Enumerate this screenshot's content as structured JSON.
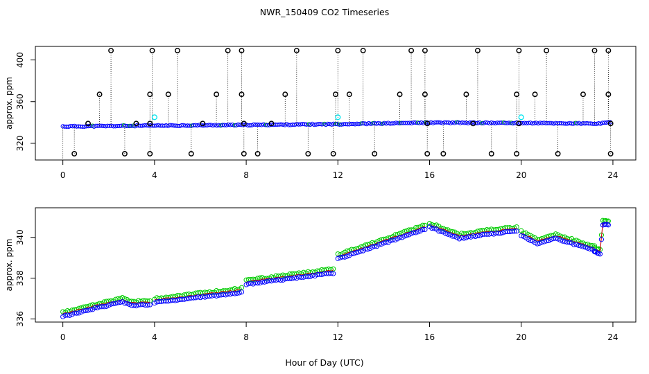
{
  "title": "NWR_150409  CO2 Timeseries",
  "xlabel": "Hour of Day (UTC)",
  "chart_data": [
    {
      "type": "scatter",
      "panel": "top",
      "ylabel": "approx. ppm",
      "xlim": [
        -1.2,
        25
      ],
      "ylim": [
        304,
        413
      ],
      "xticks": [
        0,
        4,
        8,
        12,
        16,
        20,
        24
      ],
      "yticks": [
        320,
        360,
        400
      ],
      "colors": {
        "raw": "#000000",
        "smoothed": "#0000ff",
        "green": "#00cc00",
        "cyan": "#00e5ee"
      },
      "baseline": [
        [
          0,
          336.2
        ],
        [
          4,
          336.9
        ],
        [
          8,
          337.6
        ],
        [
          12,
          338.4
        ],
        [
          16,
          339.8
        ],
        [
          20,
          339.5
        ],
        [
          23.4,
          338.8
        ],
        [
          23.9,
          340.2
        ]
      ],
      "outliers_high": [
        [
          2.1,
          409
        ],
        [
          3.9,
          409
        ],
        [
          5.0,
          409
        ],
        [
          7.2,
          409
        ],
        [
          7.8,
          409
        ],
        [
          10.2,
          409
        ],
        [
          12.0,
          409
        ],
        [
          13.1,
          409
        ],
        [
          15.2,
          409
        ],
        [
          15.8,
          409
        ],
        [
          18.1,
          409
        ],
        [
          19.9,
          409
        ],
        [
          21.1,
          409
        ],
        [
          23.2,
          409
        ],
        [
          23.8,
          409
        ],
        [
          1.6,
          367
        ],
        [
          3.8,
          367
        ],
        [
          4.6,
          367
        ],
        [
          6.7,
          367
        ],
        [
          7.8,
          367
        ],
        [
          9.7,
          367
        ],
        [
          11.9,
          367
        ],
        [
          12.5,
          367
        ],
        [
          14.7,
          367
        ],
        [
          15.8,
          367
        ],
        [
          17.6,
          367
        ],
        [
          19.8,
          367
        ],
        [
          20.6,
          367
        ],
        [
          22.7,
          367
        ],
        [
          23.8,
          367
        ]
      ],
      "outliers_low": [
        [
          0.5,
          310
        ],
        [
          2.7,
          310
        ],
        [
          3.8,
          310
        ],
        [
          5.6,
          310
        ],
        [
          7.9,
          310
        ],
        [
          8.5,
          310
        ],
        [
          10.7,
          310
        ],
        [
          11.8,
          310
        ],
        [
          13.6,
          310
        ],
        [
          15.9,
          310
        ],
        [
          16.6,
          310
        ],
        [
          18.7,
          310
        ],
        [
          19.8,
          310
        ],
        [
          21.6,
          310
        ],
        [
          23.9,
          310
        ]
      ],
      "mid_marks": [
        [
          1.1,
          339
        ],
        [
          3.2,
          339
        ],
        [
          3.8,
          339
        ],
        [
          6.1,
          339
        ],
        [
          7.9,
          339
        ],
        [
          9.1,
          339
        ],
        [
          15.9,
          339
        ],
        [
          17.9,
          339
        ],
        [
          19.9,
          339
        ],
        [
          23.9,
          339
        ]
      ],
      "cyan_marks": [
        [
          4.0,
          345
        ],
        [
          12.0,
          345
        ],
        [
          20.0,
          345
        ]
      ]
    },
    {
      "type": "scatter",
      "panel": "bottom",
      "ylabel": "approx. ppm",
      "xlim": [
        -1.2,
        25
      ],
      "ylim": [
        335.85,
        341.45
      ],
      "xticks": [
        0,
        4,
        8,
        12,
        16,
        20,
        24
      ],
      "yticks": [
        336,
        338,
        340
      ],
      "colors": {
        "blue": "#0000ff",
        "green": "#00cc00",
        "red": "#cc0000"
      },
      "segments": [
        {
          "x0": 0.0,
          "x1": 3.8,
          "anchors": [
            [
              0,
              336.12
            ],
            [
              1.5,
              336.55
            ],
            [
              2.6,
              336.82
            ],
            [
              3.0,
              336.65
            ],
            [
              3.8,
              336.7
            ]
          ]
        },
        {
          "x0": 4.0,
          "x1": 7.8,
          "anchors": [
            [
              4,
              336.8
            ],
            [
              7.8,
              337.3
            ]
          ]
        },
        {
          "x0": 8.0,
          "x1": 11.8,
          "anchors": [
            [
              8,
              337.7
            ],
            [
              11.8,
              338.25
            ]
          ]
        },
        {
          "x0": 12.0,
          "x1": 15.8,
          "anchors": [
            [
              12,
              338.95
            ],
            [
              14,
              339.7
            ],
            [
              15.8,
              340.4
            ]
          ]
        },
        {
          "x0": 16.0,
          "x1": 19.8,
          "anchors": [
            [
              16,
              340.5
            ],
            [
              17.3,
              339.95
            ],
            [
              18.5,
              340.15
            ],
            [
              19.8,
              340.3
            ]
          ]
        },
        {
          "x0": 20.0,
          "x1": 23.2,
          "anchors": [
            [
              20,
              340.1
            ],
            [
              20.7,
              339.7
            ],
            [
              21.5,
              339.95
            ],
            [
              23.2,
              339.35
            ]
          ]
        },
        {
          "x0": 23.2,
          "x1": 23.8,
          "anchors": [
            [
              23.2,
              339.28
            ],
            [
              23.45,
              339.2
            ],
            [
              23.55,
              340.6
            ],
            [
              23.8,
              340.62
            ]
          ]
        }
      ]
    }
  ]
}
